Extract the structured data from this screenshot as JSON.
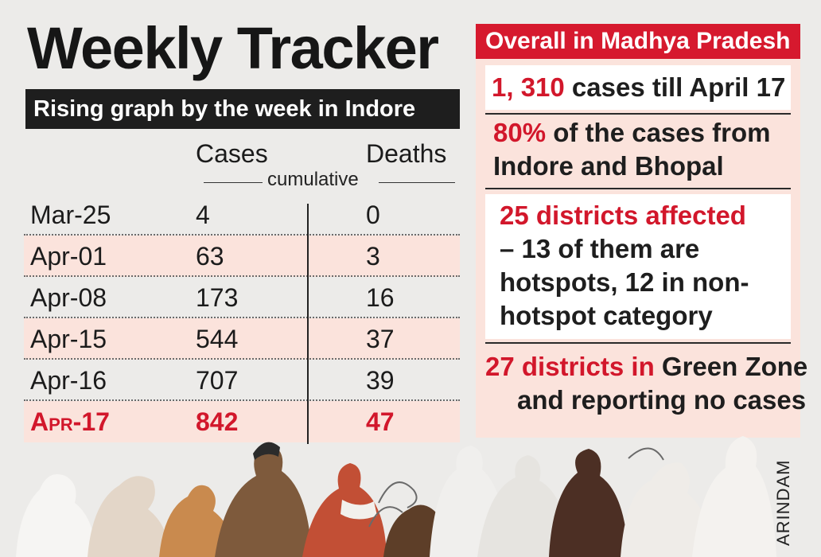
{
  "title": "Weekly Tracker",
  "subtitle": "Rising graph by the week in Indore",
  "credit": "ARINDAM",
  "colors": {
    "accent_red": "#d2172b",
    "header_red": "#d6192e",
    "row_shade": "#fbe3dc",
    "dark": "#1e1e1e"
  },
  "chart_data": {
    "type": "table",
    "title": "Weekly Tracker",
    "subtitle": "Rising graph by the week in Indore",
    "columns": [
      "Cases",
      "Deaths"
    ],
    "column_note": "cumulative",
    "rows": [
      {
        "date": "Mar-25",
        "cases": "4",
        "deaths": "0"
      },
      {
        "date": "Apr-01",
        "cases": "63",
        "deaths": "3"
      },
      {
        "date": "Apr-08",
        "cases": "173",
        "deaths": "16"
      },
      {
        "date": "Apr-15",
        "cases": "544",
        "deaths": "37"
      },
      {
        "date": "Apr-16",
        "cases": "707",
        "deaths": "39"
      },
      {
        "date": "Apr-17",
        "cases": "842",
        "deaths": "47"
      }
    ],
    "highlight_row": "Apr-17"
  },
  "panel": {
    "title": "Overall in Madhya Pradesh",
    "stat1": {
      "highlight": "1, 310",
      "rest": " cases till April 17"
    },
    "stat2": {
      "highlight": "80%",
      "line1_rest": " of the cases from",
      "line2": "Indore and Bhopal"
    },
    "stat3": {
      "highlight": "25 districts affected",
      "line1": "– 13 of them are",
      "line2": "hotspots, 12 in non-",
      "line3": "hotspot category"
    },
    "stat4": {
      "highlight": "27 districts in",
      "line1_rest": " Green Zone",
      "line2": "and reporting no cases"
    }
  }
}
